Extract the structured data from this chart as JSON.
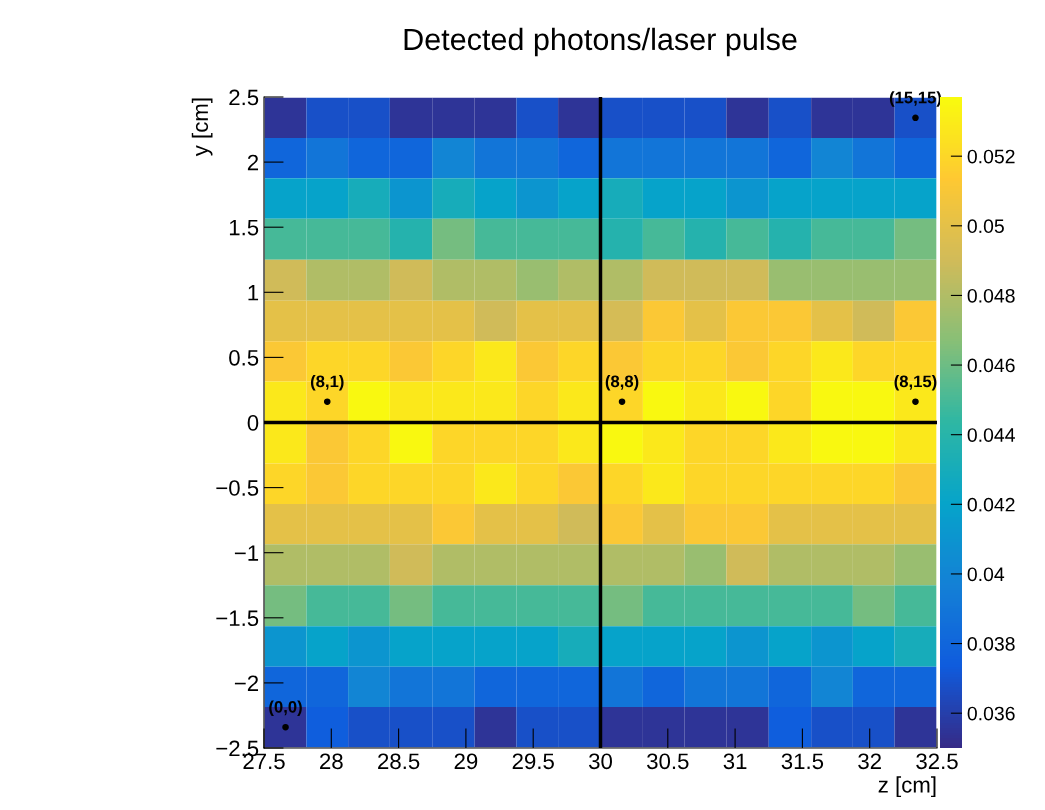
{
  "chart_data": {
    "type": "heatmap",
    "title": "Detected photons/laser pulse",
    "xlabel": "z [cm]",
    "ylabel": "y [cm]",
    "x": [
      27.66,
      27.97,
      28.28,
      28.59,
      28.91,
      29.22,
      29.53,
      29.84,
      30.16,
      30.47,
      30.78,
      31.09,
      31.41,
      31.72,
      32.03,
      32.34
    ],
    "y": [
      2.34,
      2.03,
      1.72,
      1.41,
      1.09,
      0.78,
      0.47,
      0.16,
      -0.16,
      -0.47,
      -0.78,
      -1.09,
      -1.41,
      -1.72,
      -2.03,
      -2.34
    ],
    "xlim": [
      27.5,
      32.5
    ],
    "xticks": [
      27.5,
      28,
      28.5,
      29,
      29.5,
      30,
      30.5,
      31,
      31.5,
      32,
      32.5
    ],
    "ylim": [
      -2.5,
      2.5
    ],
    "yticks": [
      -2.5,
      -2,
      -1.5,
      -1,
      -0.5,
      0,
      0.5,
      1,
      1.5,
      2,
      2.5
    ],
    "clim": [
      0.035,
      0.0537
    ],
    "cticks": [
      0.036,
      0.038,
      0.04,
      0.042,
      0.044,
      0.046,
      0.048,
      0.05,
      0.052
    ],
    "cells": [
      [
        0.0355,
        0.0368,
        0.0368,
        0.0355,
        0.0355,
        0.0355,
        0.0368,
        0.0355,
        0.0368,
        0.0368,
        0.0368,
        0.0355,
        0.0368,
        0.0355,
        0.0355,
        0.0368
      ],
      [
        0.038,
        0.039,
        0.038,
        0.038,
        0.04,
        0.039,
        0.039,
        0.038,
        0.039,
        0.039,
        0.039,
        0.039,
        0.038,
        0.04,
        0.039,
        0.038
      ],
      [
        0.042,
        0.042,
        0.043,
        0.041,
        0.043,
        0.042,
        0.041,
        0.042,
        0.043,
        0.042,
        0.042,
        0.041,
        0.042,
        0.042,
        0.042,
        0.042
      ],
      [
        0.045,
        0.045,
        0.045,
        0.0438,
        0.0462,
        0.045,
        0.045,
        0.045,
        0.0438,
        0.045,
        0.0438,
        0.045,
        0.0438,
        0.045,
        0.045,
        0.0462
      ],
      [
        0.049,
        0.048,
        0.048,
        0.049,
        0.048,
        0.048,
        0.0472,
        0.048,
        0.048,
        0.049,
        0.049,
        0.049,
        0.0472,
        0.0472,
        0.0472,
        0.0472
      ],
      [
        0.05,
        0.05,
        0.05,
        0.05,
        0.05,
        0.049,
        0.05,
        0.05,
        0.0492,
        0.0512,
        0.05,
        0.0512,
        0.0512,
        0.05,
        0.049,
        0.0512
      ],
      [
        0.0512,
        0.052,
        0.052,
        0.0512,
        0.052,
        0.0528,
        0.0512,
        0.052,
        0.0512,
        0.052,
        0.052,
        0.0512,
        0.052,
        0.0528,
        0.052,
        0.052
      ],
      [
        0.0528,
        0.052,
        0.0535,
        0.0528,
        0.0528,
        0.0528,
        0.052,
        0.0528,
        0.052,
        0.0535,
        0.0528,
        0.0535,
        0.052,
        0.0535,
        0.0535,
        0.0528
      ],
      [
        0.0528,
        0.0512,
        0.052,
        0.0535,
        0.052,
        0.052,
        0.052,
        0.0528,
        0.0535,
        0.0528,
        0.052,
        0.052,
        0.0528,
        0.0535,
        0.0535,
        0.0528
      ],
      [
        0.052,
        0.0512,
        0.052,
        0.052,
        0.052,
        0.0528,
        0.052,
        0.0512,
        0.052,
        0.0528,
        0.052,
        0.052,
        0.052,
        0.052,
        0.052,
        0.0512
      ],
      [
        0.05,
        0.05,
        0.05,
        0.05,
        0.0512,
        0.05,
        0.05,
        0.049,
        0.0512,
        0.05,
        0.0512,
        0.0512,
        0.05,
        0.05,
        0.05,
        0.05
      ],
      [
        0.048,
        0.048,
        0.048,
        0.049,
        0.048,
        0.048,
        0.048,
        0.048,
        0.048,
        0.048,
        0.0472,
        0.049,
        0.048,
        0.048,
        0.048,
        0.0472
      ],
      [
        0.0462,
        0.045,
        0.045,
        0.0462,
        0.045,
        0.045,
        0.045,
        0.045,
        0.0462,
        0.045,
        0.045,
        0.045,
        0.045,
        0.045,
        0.0462,
        0.045
      ],
      [
        0.041,
        0.042,
        0.041,
        0.042,
        0.042,
        0.042,
        0.042,
        0.043,
        0.042,
        0.042,
        0.042,
        0.041,
        0.042,
        0.041,
        0.042,
        0.043
      ],
      [
        0.038,
        0.038,
        0.04,
        0.039,
        0.039,
        0.038,
        0.038,
        0.038,
        0.039,
        0.038,
        0.039,
        0.039,
        0.038,
        0.04,
        0.038,
        0.038
      ],
      [
        0.0355,
        0.0375,
        0.0368,
        0.0368,
        0.0368,
        0.0355,
        0.0368,
        0.0368,
        0.0355,
        0.0355,
        0.0355,
        0.0355,
        0.0375,
        0.0368,
        0.0368,
        0.0355
      ]
    ],
    "ref_lines": [
      {
        "axis": "x",
        "value": 30,
        "color": "#000000"
      },
      {
        "axis": "y",
        "value": 0,
        "color": "#000000"
      }
    ],
    "series": [
      {
        "type": "scatter",
        "color": "#000000",
        "x": [
          27.66,
          27.97,
          30.16,
          32.34,
          32.34
        ],
        "values": [
          -2.34,
          0.16,
          0.16,
          0.16,
          2.34
        ]
      }
    ],
    "annotations": [
      {
        "text": "(0,0)",
        "x": 27.66,
        "y": -2.34
      },
      {
        "text": "(8,1)",
        "x": 27.97,
        "y": 0.16
      },
      {
        "text": "(8,8)",
        "x": 30.16,
        "y": 0.16
      },
      {
        "text": "(8,15)",
        "x": 32.34,
        "y": 0.16
      },
      {
        "text": "(15,15)",
        "x": 32.34,
        "y": 2.34
      }
    ]
  }
}
